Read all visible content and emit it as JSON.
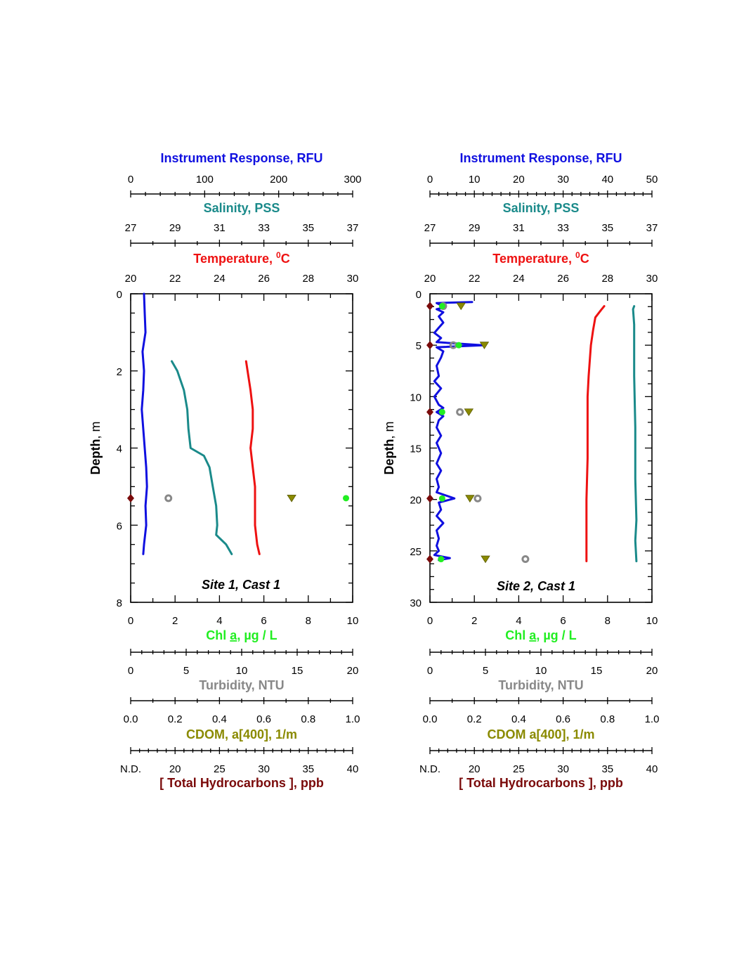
{
  "colors": {
    "rfu": "#1010e0",
    "salinity": "#1a8a8a",
    "temperature": "#ee1111",
    "chl": "#22ee22",
    "turbidity": "#888888",
    "cdom": "#8a8a00",
    "thc": "#7a0a0a",
    "text": "#000000"
  },
  "chart_data": [
    {
      "id": "site1",
      "type": "line",
      "cast_label": "Site 1, Cast 1",
      "depth_axis": {
        "label": "Depth",
        "unit": ", m",
        "range": [
          0,
          8
        ],
        "tick_labels": [
          "0",
          "2",
          "4",
          "6",
          "8"
        ]
      },
      "top_axes": [
        {
          "key": "rfu",
          "title": "Instrument Response",
          "unit": ", RFU",
          "range": [
            0,
            300
          ],
          "tick_labels": [
            "0",
            "100",
            "200",
            "300"
          ],
          "minor_per_major": 5
        },
        {
          "key": "salinity",
          "title": "Salinity",
          "unit": ", PSS",
          "range": [
            27,
            37
          ],
          "tick_labels": [
            "27",
            "29",
            "31",
            "33",
            "35",
            "37"
          ],
          "minor_per_major": 2
        },
        {
          "key": "temperature",
          "title": "Temperature",
          "unit": ", ",
          "unit_sup": "0",
          "unit_tail": "C",
          "range": [
            20,
            30
          ],
          "tick_labels": [
            "20",
            "22",
            "24",
            "26",
            "28",
            "30"
          ],
          "minor_per_major": 2
        }
      ],
      "bottom_axes": [
        {
          "key": "chl",
          "title_a": "Chl ",
          "title_u": "a",
          "unit": ", µg / L",
          "range": [
            0,
            10
          ],
          "tick_labels": [
            "0",
            "2",
            "4",
            "6",
            "8",
            "10"
          ],
          "minor_per_major": 2
        },
        {
          "key": "turbidity",
          "title": "Turbidity",
          "unit": ", NTU",
          "range": [
            0,
            20
          ],
          "tick_labels": [
            "0",
            "5",
            "10",
            "15",
            "20"
          ],
          "minor_per_major": 5
        },
        {
          "key": "cdom",
          "title": "CDOM",
          "unit": ", a[400], 1/m",
          "range": [
            0,
            1
          ],
          "tick_labels": [
            "0.0",
            "0.2",
            "0.4",
            "0.6",
            "0.8",
            "1.0"
          ],
          "minor_per_major": 2
        },
        {
          "key": "thc",
          "title": "[ Total Hydrocarbons ]",
          "unit": ", ppb",
          "range": [
            15,
            40
          ],
          "tick_labels": [
            "N.D.",
            "20",
            "25",
            "30",
            "35",
            "40"
          ],
          "minor_per_major": 5
        }
      ],
      "series": [
        {
          "name": "Instrument Response",
          "axis": "rfu",
          "style": "line",
          "points": [
            [
              18,
              0.0
            ],
            [
              19,
              0.5
            ],
            [
              20,
              1.0
            ],
            [
              16,
              1.5
            ],
            [
              18,
              2.0
            ],
            [
              17,
              2.5
            ],
            [
              15,
              3.0
            ],
            [
              17,
              3.5
            ],
            [
              19,
              4.0
            ],
            [
              21,
              4.5
            ],
            [
              22,
              5.0
            ],
            [
              20,
              5.5
            ],
            [
              21,
              6.0
            ],
            [
              18,
              6.5
            ],
            [
              17,
              6.75
            ]
          ]
        },
        {
          "name": "Salinity",
          "axis": "salinity",
          "style": "line",
          "points": [
            [
              28.85,
              1.75
            ],
            [
              29.1,
              2.0
            ],
            [
              29.4,
              2.5
            ],
            [
              29.55,
              3.0
            ],
            [
              29.6,
              3.5
            ],
            [
              29.7,
              4.0
            ],
            [
              30.3,
              4.2
            ],
            [
              30.55,
              4.5
            ],
            [
              30.7,
              5.0
            ],
            [
              30.85,
              5.5
            ],
            [
              30.9,
              6.0
            ],
            [
              30.85,
              6.25
            ],
            [
              31.3,
              6.5
            ],
            [
              31.55,
              6.75
            ]
          ]
        },
        {
          "name": "Temperature",
          "axis": "temperature",
          "style": "line",
          "points": [
            [
              25.2,
              1.75
            ],
            [
              25.4,
              2.5
            ],
            [
              25.5,
              3.0
            ],
            [
              25.5,
              3.5
            ],
            [
              25.4,
              4.0
            ],
            [
              25.5,
              4.5
            ],
            [
              25.6,
              5.0
            ],
            [
              25.6,
              5.5
            ],
            [
              25.6,
              6.0
            ],
            [
              25.7,
              6.5
            ],
            [
              25.8,
              6.75
            ]
          ]
        },
        {
          "name": "Chl a",
          "axis": "chl",
          "style": "dot",
          "points": [
            [
              9.7,
              5.3
            ]
          ]
        },
        {
          "name": "Turbidity",
          "axis": "turbidity",
          "style": "ring",
          "points": [
            [
              3.4,
              5.3
            ]
          ]
        },
        {
          "name": "CDOM",
          "axis": "cdom",
          "style": "triangle",
          "points": [
            [
              0.725,
              5.3
            ]
          ]
        },
        {
          "name": "Total Hydrocarbons",
          "axis": "thc",
          "style": "diamond",
          "points": [
            [
              15,
              5.3
            ]
          ]
        }
      ]
    },
    {
      "id": "site2",
      "type": "line",
      "cast_label": "Site 2, Cast 1",
      "depth_axis": {
        "label": "Depth",
        "unit": ", m",
        "range": [
          0,
          30
        ],
        "tick_labels": [
          "0",
          "5",
          "10",
          "15",
          "20",
          "25",
          "30"
        ]
      },
      "top_axes": [
        {
          "key": "rfu",
          "title": "Instrument Response",
          "unit": ", RFU",
          "range": [
            0,
            50
          ],
          "tick_labels": [
            "0",
            "10",
            "20",
            "30",
            "40",
            "50"
          ],
          "minor_per_major": 5
        },
        {
          "key": "salinity",
          "title": "Salinity",
          "unit": ", PSS",
          "range": [
            27,
            37
          ],
          "tick_labels": [
            "27",
            "29",
            "31",
            "33",
            "35",
            "37"
          ],
          "minor_per_major": 2
        },
        {
          "key": "temperature",
          "title": "Temperature",
          "unit": ", ",
          "unit_sup": "0",
          "unit_tail": "C",
          "range": [
            20,
            30
          ],
          "tick_labels": [
            "20",
            "22",
            "24",
            "26",
            "28",
            "30"
          ],
          "minor_per_major": 2
        }
      ],
      "bottom_axes": [
        {
          "key": "chl",
          "title_a": "Chl ",
          "title_u": "a",
          "unit": ", µg / L",
          "range": [
            0,
            10
          ],
          "tick_labels": [
            "0",
            "2",
            "4",
            "6",
            "8",
            "10"
          ],
          "minor_per_major": 2
        },
        {
          "key": "turbidity",
          "title": "Turbidity",
          "unit": ", NTU",
          "range": [
            0,
            20
          ],
          "tick_labels": [
            "0",
            "5",
            "10",
            "15",
            "20"
          ],
          "minor_per_major": 5
        },
        {
          "key": "cdom",
          "title": "CDOM a[400]",
          "unit": ", 1/m",
          "range": [
            0,
            1
          ],
          "tick_labels": [
            "0.0",
            "0.2",
            "0.4",
            "0.6",
            "0.8",
            "1.0"
          ],
          "minor_per_major": 2
        },
        {
          "key": "thc",
          "title": "[ Total Hydrocarbons ]",
          "unit": ", ppb",
          "range": [
            15,
            40
          ],
          "tick_labels": [
            "N.D.",
            "20",
            "25",
            "30",
            "35",
            "40"
          ],
          "minor_per_major": 5
        }
      ],
      "series": [
        {
          "name": "Instrument Response",
          "axis": "rfu",
          "style": "line",
          "points": [
            [
              9.5,
              0.8
            ],
            [
              1.5,
              0.9
            ],
            [
              2.5,
              1.1
            ],
            [
              3.5,
              1.3
            ],
            [
              1.5,
              1.5
            ],
            [
              3,
              1.8
            ],
            [
              2,
              2.2
            ],
            [
              3,
              2.8
            ],
            [
              2,
              3.3
            ],
            [
              1,
              3.8
            ],
            [
              2.5,
              4.3
            ],
            [
              1.5,
              4.7
            ],
            [
              12,
              5.0
            ],
            [
              1.5,
              5.2
            ],
            [
              3,
              5.6
            ],
            [
              2.5,
              6.2
            ],
            [
              1.5,
              7.0
            ],
            [
              2,
              8.0
            ],
            [
              1,
              8.5
            ],
            [
              2.5,
              9.2
            ],
            [
              1,
              10.0
            ],
            [
              2,
              10.8
            ],
            [
              3,
              11.1
            ],
            [
              1.5,
              11.5
            ],
            [
              3,
              11.9
            ],
            [
              2,
              12.3
            ],
            [
              1.5,
              13.0
            ],
            [
              2.5,
              13.8
            ],
            [
              1.5,
              14.5
            ],
            [
              2.5,
              15.5
            ],
            [
              1.5,
              16.5
            ],
            [
              2.5,
              17.2
            ],
            [
              1.5,
              18.0
            ],
            [
              2,
              18.8
            ],
            [
              1.5,
              19.3
            ],
            [
              5.5,
              19.9
            ],
            [
              2,
              20.3
            ],
            [
              2.5,
              21.0
            ],
            [
              1.5,
              21.6
            ],
            [
              3,
              22.3
            ],
            [
              1.5,
              23.0
            ],
            [
              2,
              23.8
            ],
            [
              1.5,
              24.5
            ],
            [
              2,
              25.0
            ],
            [
              1,
              25.4
            ],
            [
              4.5,
              25.7
            ],
            [
              2,
              25.9
            ]
          ]
        },
        {
          "name": "Salinity",
          "axis": "salinity",
          "style": "line",
          "points": [
            [
              36.2,
              1.2
            ],
            [
              36.15,
              1.5
            ],
            [
              36.2,
              3.0
            ],
            [
              36.2,
              8.0
            ],
            [
              36.25,
              13.0
            ],
            [
              36.25,
              18.0
            ],
            [
              36.3,
              22.0
            ],
            [
              36.25,
              24.0
            ],
            [
              36.3,
              26.0
            ]
          ]
        },
        {
          "name": "Temperature",
          "axis": "temperature",
          "style": "line",
          "points": [
            [
              27.85,
              1.2
            ],
            [
              27.7,
              1.6
            ],
            [
              27.45,
              2.3
            ],
            [
              27.35,
              3.5
            ],
            [
              27.25,
              5.0
            ],
            [
              27.2,
              6.5
            ],
            [
              27.15,
              8.0
            ],
            [
              27.1,
              10.0
            ],
            [
              27.1,
              12.0
            ],
            [
              27.1,
              16.0
            ],
            [
              27.05,
              20.0
            ],
            [
              27.05,
              24.0
            ],
            [
              27.05,
              26.0
            ]
          ]
        },
        {
          "name": "Chl a",
          "axis": "chl",
          "style": "dot",
          "points": [
            [
              0.55,
              1.2
            ],
            [
              1.3,
              5.0
            ],
            [
              0.55,
              11.5
            ],
            [
              0.55,
              19.9
            ],
            [
              0.5,
              25.8
            ]
          ]
        },
        {
          "name": "Turbidity",
          "axis": "turbidity",
          "style": "ring",
          "points": [
            [
              1.2,
              1.2
            ],
            [
              2.1,
              5.0
            ],
            [
              2.7,
              11.5
            ],
            [
              4.3,
              19.9
            ],
            [
              8.6,
              25.8
            ]
          ]
        },
        {
          "name": "CDOM",
          "axis": "cdom",
          "style": "triangle",
          "points": [
            [
              0.14,
              1.2
            ],
            [
              0.245,
              5.0
            ],
            [
              0.175,
              11.5
            ],
            [
              0.18,
              19.9
            ],
            [
              0.25,
              25.8
            ]
          ]
        },
        {
          "name": "Total Hydrocarbons",
          "axis": "thc",
          "style": "diamond",
          "points": [
            [
              15,
              1.2
            ],
            [
              15,
              5.0
            ],
            [
              15,
              11.5
            ],
            [
              15,
              19.9
            ],
            [
              15,
              25.8
            ]
          ]
        }
      ]
    }
  ]
}
